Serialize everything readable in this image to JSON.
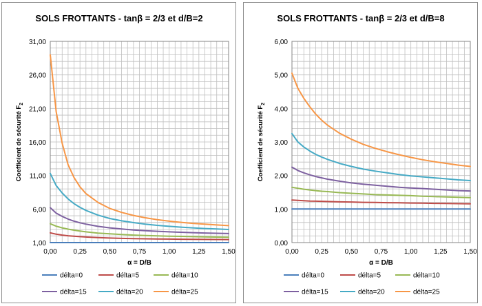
{
  "chart_data": [
    {
      "type": "line",
      "title": "SOLS FROTTANTS - tanβ = 2/3 et d/B=2",
      "xlabel": "α = D/B",
      "ylabel": "Coefficient de sécurité F",
      "ylabel_sub": "2",
      "xlim": [
        0,
        1.5
      ],
      "ylim": [
        1,
        31
      ],
      "x_ticks": [
        "0,00",
        "0,25",
        "0,50",
        "0,75",
        "1,00",
        "1,25",
        "1,50"
      ],
      "y_ticks": [
        "1,00",
        "6,00",
        "11,00",
        "16,00",
        "21,00",
        "26,00",
        "31,00"
      ],
      "grid": true,
      "legend_position": "bottom",
      "x": [
        0,
        0.05,
        0.1,
        0.15,
        0.2,
        0.25,
        0.3,
        0.4,
        0.5,
        0.6,
        0.7,
        0.8,
        0.9,
        1.0,
        1.1,
        1.2,
        1.3,
        1.4,
        1.5
      ],
      "series": [
        {
          "name": "délta=0",
          "color": "#4a7ebb",
          "values": [
            1,
            1,
            1,
            1,
            1,
            1,
            1,
            1,
            1,
            1,
            1,
            1,
            1,
            1,
            1,
            1,
            1,
            1,
            1
          ]
        },
        {
          "name": "délta=5",
          "color": "#be4b48",
          "values": [
            2.45,
            2.25,
            2.12,
            2.02,
            1.95,
            1.88,
            1.83,
            1.74,
            1.68,
            1.63,
            1.59,
            1.56,
            1.54,
            1.52,
            1.5,
            1.48,
            1.47,
            1.46,
            1.45
          ]
        },
        {
          "name": "délta=10",
          "color": "#98b954",
          "values": [
            3.8,
            3.45,
            3.2,
            3.0,
            2.85,
            2.72,
            2.6,
            2.42,
            2.3,
            2.2,
            2.12,
            2.06,
            2.0,
            1.96,
            1.92,
            1.88,
            1.85,
            1.82,
            1.8
          ]
        },
        {
          "name": "délta=15",
          "color": "#7d60a0",
          "values": [
            6.2,
            5.4,
            4.9,
            4.5,
            4.2,
            3.95,
            3.75,
            3.42,
            3.2,
            3.02,
            2.88,
            2.77,
            2.68,
            2.6,
            2.54,
            2.48,
            2.43,
            2.39,
            2.35
          ]
        },
        {
          "name": "délta=20",
          "color": "#46aac5",
          "values": [
            11.3,
            9.5,
            8.4,
            7.5,
            6.8,
            6.25,
            5.8,
            5.1,
            4.6,
            4.25,
            3.98,
            3.75,
            3.57,
            3.42,
            3.3,
            3.2,
            3.1,
            3.02,
            2.95
          ]
        },
        {
          "name": "délta=25",
          "color": "#f79646",
          "values": [
            29.0,
            20.5,
            15.8,
            12.6,
            10.7,
            9.3,
            8.3,
            7.0,
            6.1,
            5.5,
            5.05,
            4.7,
            4.42,
            4.2,
            4.02,
            3.87,
            3.74,
            3.63,
            3.53
          ]
        }
      ]
    },
    {
      "type": "line",
      "title": "SOLS FROTTANTS - tanβ = 2/3 et d/B=8",
      "xlabel": "α = D/B",
      "ylabel": "Coefficient de sécurité F",
      "ylabel_sub": "2",
      "xlim": [
        0,
        1.5
      ],
      "ylim": [
        0,
        6
      ],
      "x_ticks": [
        "0,00",
        "0,25",
        "0,50",
        "0,75",
        "1,00",
        "1,25",
        "1,50"
      ],
      "y_ticks": [
        "0,00",
        "1,00",
        "2,00",
        "3,00",
        "4,00",
        "5,00",
        "6,00"
      ],
      "grid": true,
      "legend_position": "bottom",
      "x": [
        0,
        0.05,
        0.1,
        0.15,
        0.2,
        0.25,
        0.3,
        0.4,
        0.5,
        0.6,
        0.7,
        0.8,
        0.9,
        1.0,
        1.1,
        1.2,
        1.3,
        1.4,
        1.5
      ],
      "series": [
        {
          "name": "délta=0",
          "color": "#4a7ebb",
          "values": [
            1,
            1,
            1,
            1,
            1,
            1,
            1,
            1,
            1,
            1,
            1,
            1,
            1,
            1,
            1,
            1,
            1,
            1,
            1
          ]
        },
        {
          "name": "délta=5",
          "color": "#be4b48",
          "values": [
            1.27,
            1.26,
            1.25,
            1.24,
            1.235,
            1.23,
            1.225,
            1.215,
            1.21,
            1.2,
            1.195,
            1.19,
            1.185,
            1.18,
            1.175,
            1.17,
            1.165,
            1.16,
            1.155
          ]
        },
        {
          "name": "délta=10",
          "color": "#98b954",
          "values": [
            1.65,
            1.62,
            1.59,
            1.57,
            1.55,
            1.53,
            1.52,
            1.49,
            1.47,
            1.45,
            1.43,
            1.42,
            1.41,
            1.4,
            1.38,
            1.37,
            1.36,
            1.35,
            1.34
          ]
        },
        {
          "name": "délta=15",
          "color": "#7d60a0",
          "values": [
            2.25,
            2.15,
            2.08,
            2.02,
            1.97,
            1.93,
            1.89,
            1.83,
            1.78,
            1.74,
            1.71,
            1.68,
            1.65,
            1.63,
            1.61,
            1.59,
            1.57,
            1.55,
            1.54
          ]
        },
        {
          "name": "délta=20",
          "color": "#46aac5",
          "values": [
            3.25,
            3.0,
            2.85,
            2.73,
            2.63,
            2.55,
            2.48,
            2.36,
            2.27,
            2.19,
            2.13,
            2.08,
            2.03,
            1.99,
            1.96,
            1.93,
            1.9,
            1.87,
            1.85
          ]
        },
        {
          "name": "délta=25",
          "color": "#f79646",
          "values": [
            5.05,
            4.6,
            4.3,
            4.05,
            3.83,
            3.65,
            3.5,
            3.26,
            3.08,
            2.93,
            2.81,
            2.71,
            2.62,
            2.54,
            2.47,
            2.41,
            2.36,
            2.31,
            2.27
          ]
        }
      ]
    }
  ]
}
